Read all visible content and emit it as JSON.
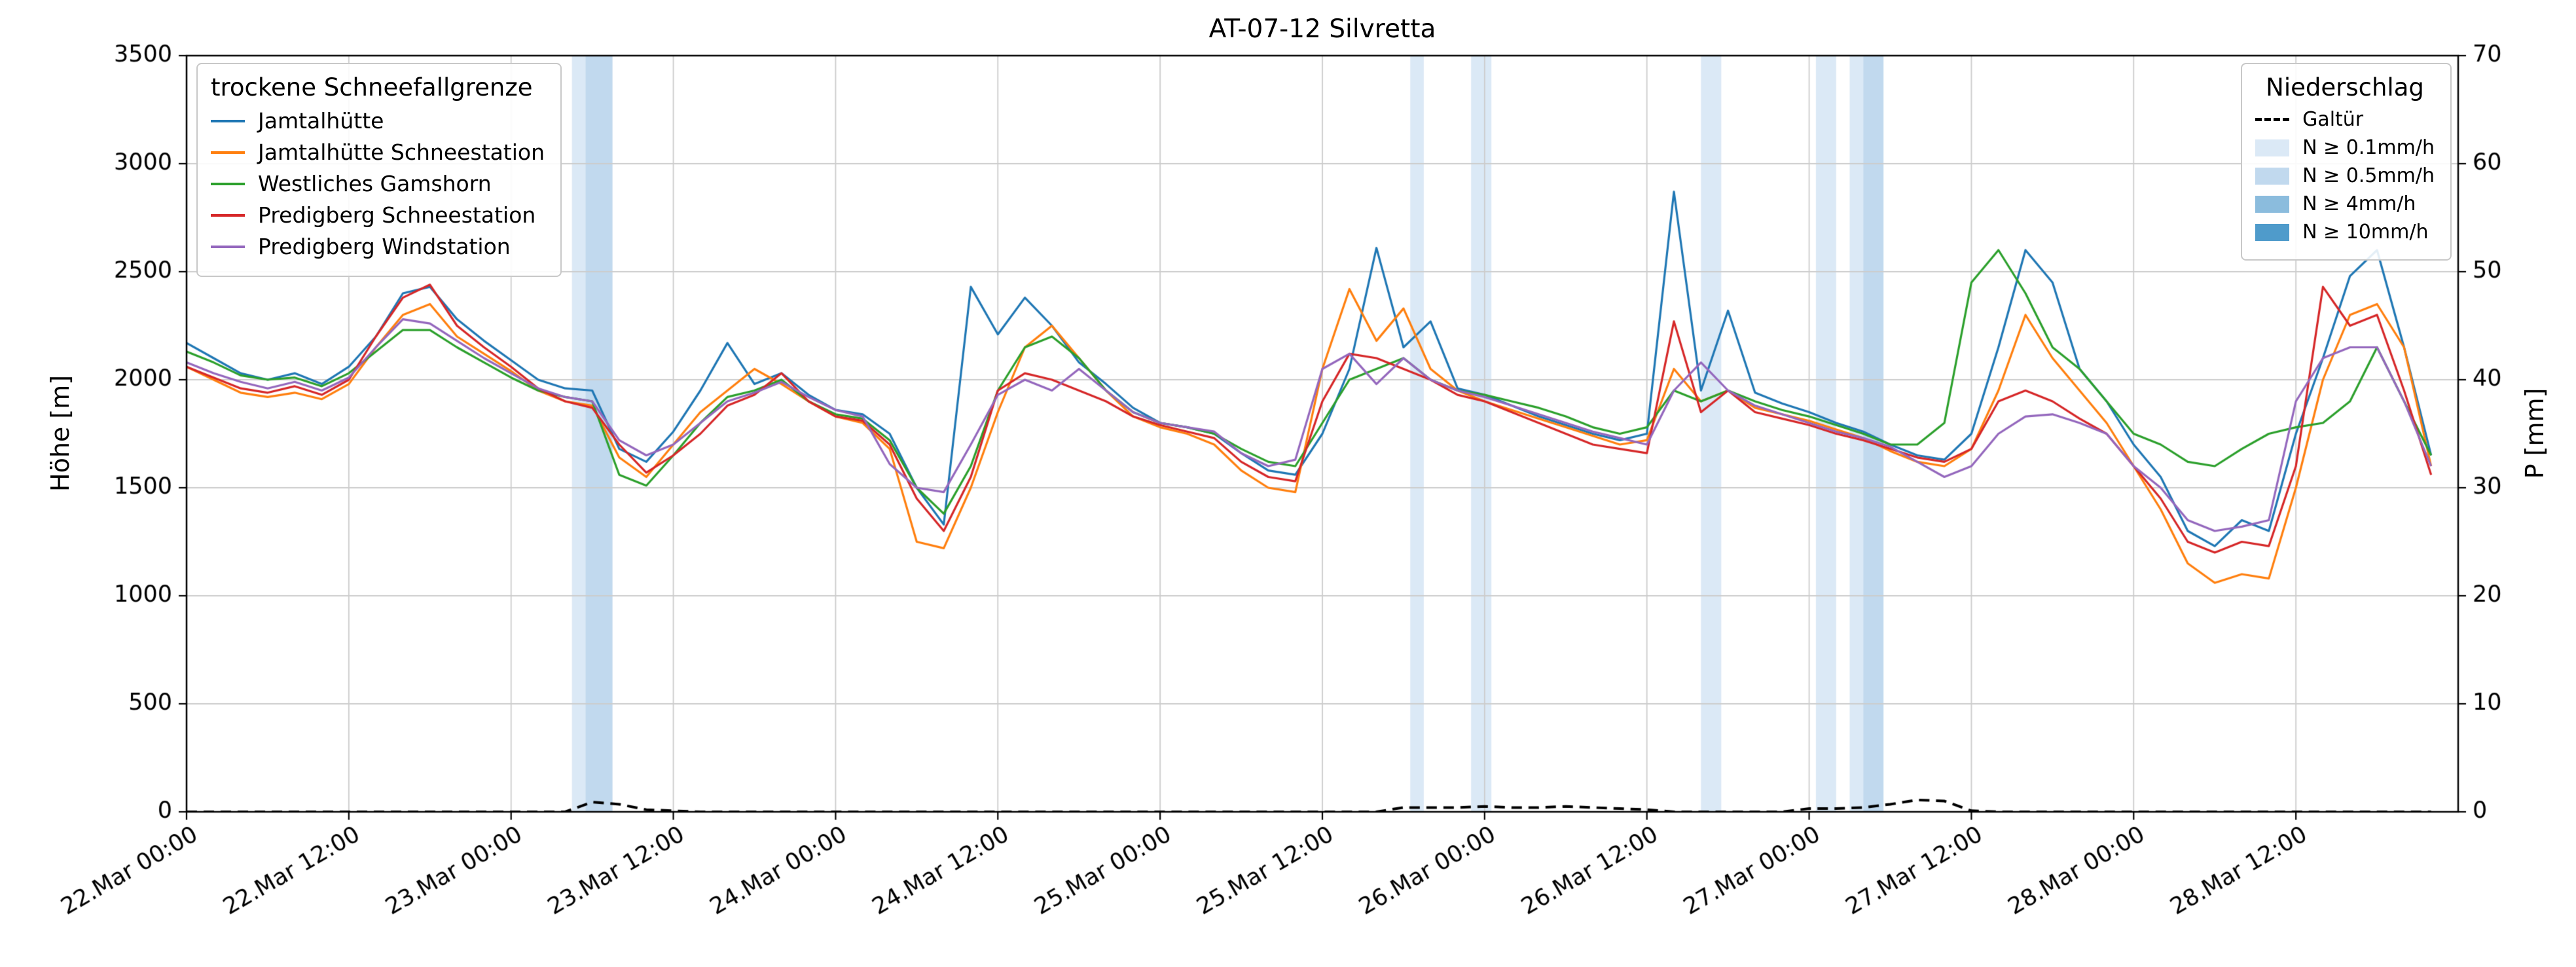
{
  "title": "AT-07-12 Silvretta",
  "left_legend": {
    "title": "trockene Schneefallgrenze",
    "items": [
      {
        "label": "Jamtalhütte",
        "color": "#1f77b4"
      },
      {
        "label": "Jamtalhütte Schneestation",
        "color": "#ff7f0e"
      },
      {
        "label": "Westliches Gamshorn",
        "color": "#2ca02c"
      },
      {
        "label": "Predigberg Schneestation",
        "color": "#d62728"
      },
      {
        "label": "Predigberg Windstation",
        "color": "#9467bd"
      }
    ]
  },
  "right_legend": {
    "title": "Niederschlag",
    "line_item": {
      "label": "Galtür",
      "color": "#000000",
      "dashed": true
    },
    "patch_items": [
      {
        "label": "N ≥ 0.1mm/h",
        "color": "#dbe9f6"
      },
      {
        "label": "N ≥ 0.5mm/h",
        "color": "#c1d9ee"
      },
      {
        "label": "N ≥ 4mm/h",
        "color": "#8bbcdd"
      },
      {
        "label": "N ≥ 10mm/h",
        "color": "#4f9bcb"
      }
    ]
  },
  "chart_data": {
    "type": "line",
    "title": "AT-07-12 Silvretta",
    "xlabel": "",
    "ylabel_left": "Höhe [m]",
    "ylabel_right": "P [mm]",
    "ylim_left": [
      0,
      3500
    ],
    "ylim_right": [
      0,
      70
    ],
    "x_range_hours": [
      0,
      168
    ],
    "grid": true,
    "x_epoch": "hours since 22.Mar 00:00",
    "y_ticks_left": [
      0,
      500,
      1000,
      1500,
      2000,
      2500,
      3000,
      3500
    ],
    "y_ticks_right": [
      0,
      10,
      20,
      30,
      40,
      50,
      60,
      70
    ],
    "x_ticks": [
      {
        "t": 0,
        "label": "22.Mar 00:00"
      },
      {
        "t": 12,
        "label": "22.Mar 12:00"
      },
      {
        "t": 24,
        "label": "23.Mar 00:00"
      },
      {
        "t": 36,
        "label": "23.Mar 12:00"
      },
      {
        "t": 48,
        "label": "24.Mar 00:00"
      },
      {
        "t": 60,
        "label": "24.Mar 12:00"
      },
      {
        "t": 72,
        "label": "25.Mar 00:00"
      },
      {
        "t": 84,
        "label": "25.Mar 12:00"
      },
      {
        "t": 96,
        "label": "26.Mar 00:00"
      },
      {
        "t": 108,
        "label": "26.Mar 12:00"
      },
      {
        "t": 120,
        "label": "27.Mar 00:00"
      },
      {
        "t": 132,
        "label": "27.Mar 12:00"
      },
      {
        "t": 144,
        "label": "28.Mar 00:00"
      },
      {
        "t": 156,
        "label": "28.Mar 12:00"
      }
    ],
    "x_hours": [
      0,
      2,
      4,
      6,
      8,
      10,
      12,
      14,
      16,
      18,
      20,
      22,
      24,
      26,
      28,
      30,
      32,
      34,
      36,
      38,
      40,
      42,
      44,
      46,
      48,
      50,
      52,
      54,
      56,
      58,
      60,
      62,
      64,
      66,
      68,
      70,
      72,
      74,
      76,
      78,
      80,
      82,
      84,
      86,
      88,
      90,
      92,
      94,
      96,
      98,
      100,
      102,
      104,
      106,
      108,
      110,
      112,
      114,
      116,
      118,
      120,
      122,
      124,
      126,
      128,
      130,
      132,
      134,
      136,
      138,
      140,
      142,
      144,
      146,
      148,
      150,
      152,
      154,
      156,
      158,
      160,
      162,
      164,
      166
    ],
    "series": [
      {
        "name": "Jamtalhütte",
        "color": "#1f77b4",
        "values": [
          2170,
          2100,
          2030,
          2000,
          2030,
          1980,
          2060,
          2200,
          2400,
          2430,
          2280,
          2180,
          2090,
          2000,
          1960,
          1950,
          1680,
          1620,
          1760,
          1950,
          2170,
          1980,
          2030,
          1930,
          1860,
          1840,
          1750,
          1500,
          1330,
          2430,
          2210,
          2380,
          2250,
          2080,
          1980,
          1870,
          1800,
          1780,
          1750,
          1660,
          1580,
          1560,
          1750,
          2050,
          2610,
          2150,
          2270,
          1960,
          1930,
          1880,
          1830,
          1790,
          1750,
          1720,
          1750,
          2870,
          1950,
          2320,
          1940,
          1890,
          1850,
          1800,
          1760,
          1700,
          1650,
          1630,
          1750,
          2150,
          2600,
          2450,
          2050,
          1900,
          1700,
          1550,
          1300,
          1230,
          1350,
          1300,
          1750,
          2100,
          2480,
          2600,
          2150,
          1650
        ]
      },
      {
        "name": "Jamtalhütte Schneestation",
        "color": "#ff7f0e",
        "values": [
          2060,
          2000,
          1940,
          1920,
          1940,
          1910,
          1980,
          2150,
          2300,
          2350,
          2200,
          2120,
          2040,
          1950,
          1900,
          1880,
          1640,
          1550,
          1700,
          1850,
          1950,
          2050,
          1980,
          1900,
          1830,
          1800,
          1680,
          1250,
          1220,
          1500,
          1850,
          2150,
          2250,
          2100,
          1950,
          1830,
          1780,
          1750,
          1700,
          1580,
          1500,
          1480,
          2050,
          2420,
          2180,
          2330,
          2050,
          1950,
          1900,
          1860,
          1820,
          1780,
          1740,
          1700,
          1720,
          2050,
          1900,
          1950,
          1870,
          1840,
          1810,
          1770,
          1730,
          1670,
          1620,
          1600,
          1680,
          1950,
          2300,
          2100,
          1950,
          1800,
          1600,
          1400,
          1150,
          1060,
          1100,
          1080,
          1500,
          2000,
          2300,
          2350,
          2150,
          1600
        ]
      },
      {
        "name": "Westliches Gamshorn",
        "color": "#2ca02c",
        "values": [
          2130,
          2080,
          2020,
          2000,
          2010,
          1970,
          2030,
          2130,
          2230,
          2230,
          2150,
          2080,
          2010,
          1950,
          1920,
          1900,
          1560,
          1510,
          1650,
          1800,
          1920,
          1950,
          2000,
          1900,
          1840,
          1820,
          1720,
          1500,
          1380,
          1600,
          1950,
          2150,
          2200,
          2100,
          1950,
          1850,
          1800,
          1780,
          1750,
          1680,
          1620,
          1600,
          1800,
          2000,
          2050,
          2100,
          2000,
          1950,
          1930,
          1900,
          1870,
          1830,
          1780,
          1750,
          1780,
          1950,
          1900,
          1950,
          1900,
          1860,
          1830,
          1790,
          1750,
          1700,
          1700,
          1800,
          2450,
          2600,
          2400,
          2150,
          2050,
          1900,
          1750,
          1700,
          1620,
          1600,
          1680,
          1750,
          1780,
          1800,
          1900,
          2150,
          1900,
          1650
        ]
      },
      {
        "name": "Predigberg Schneestation",
        "color": "#d62728",
        "values": [
          2060,
          2010,
          1960,
          1940,
          1970,
          1930,
          2000,
          2200,
          2380,
          2440,
          2250,
          2150,
          2060,
          1960,
          1900,
          1870,
          1700,
          1570,
          1650,
          1750,
          1880,
          1930,
          2030,
          1900,
          1830,
          1810,
          1700,
          1450,
          1300,
          1550,
          1950,
          2030,
          2000,
          1950,
          1900,
          1830,
          1790,
          1760,
          1730,
          1620,
          1550,
          1530,
          1900,
          2120,
          2100,
          2050,
          2000,
          1930,
          1900,
          1850,
          1800,
          1750,
          1700,
          1680,
          1660,
          2270,
          1850,
          1950,
          1850,
          1820,
          1790,
          1750,
          1720,
          1680,
          1640,
          1620,
          1680,
          1900,
          1950,
          1900,
          1820,
          1750,
          1600,
          1450,
          1250,
          1200,
          1250,
          1230,
          1600,
          2430,
          2250,
          2300,
          1950,
          1560
        ]
      },
      {
        "name": "Predigberg Windstation",
        "color": "#9467bd",
        "values": [
          2080,
          2030,
          1990,
          1960,
          1990,
          1950,
          2010,
          2150,
          2280,
          2260,
          2180,
          2100,
          2030,
          1960,
          1920,
          1900,
          1720,
          1650,
          1700,
          1800,
          1900,
          1940,
          1990,
          1920,
          1860,
          1830,
          1610,
          1500,
          1480,
          1700,
          1930,
          2000,
          1950,
          2050,
          1950,
          1850,
          1800,
          1780,
          1760,
          1660,
          1600,
          1630,
          2050,
          2120,
          1980,
          2100,
          2000,
          1950,
          1920,
          1880,
          1840,
          1800,
          1760,
          1730,
          1700,
          1950,
          2080,
          1950,
          1880,
          1840,
          1800,
          1760,
          1730,
          1690,
          1620,
          1550,
          1600,
          1750,
          1830,
          1840,
          1800,
          1750,
          1600,
          1500,
          1350,
          1300,
          1320,
          1350,
          1900,
          2100,
          2150,
          2150,
          1900,
          1600
        ]
      }
    ],
    "precip_line": {
      "name": "Galtür",
      "color": "#000000",
      "axis": "right",
      "dashed": true,
      "values": [
        0,
        0,
        0,
        0,
        0,
        0,
        0,
        0,
        0,
        0,
        0,
        0,
        0,
        0,
        0,
        0.9,
        0.7,
        0.2,
        0.1,
        0,
        0,
        0,
        0,
        0,
        0,
        0,
        0,
        0,
        0,
        0,
        0,
        0,
        0,
        0,
        0,
        0,
        0,
        0,
        0,
        0,
        0,
        0,
        0,
        0,
        0,
        0.4,
        0.4,
        0.4,
        0.5,
        0.4,
        0.4,
        0.5,
        0.4,
        0.3,
        0.2,
        0,
        0,
        0,
        0,
        0,
        0.3,
        0.3,
        0.4,
        0.7,
        1.1,
        1.0,
        0.1,
        0,
        0,
        0,
        0,
        0,
        0,
        0,
        0,
        0,
        0,
        0,
        0,
        0,
        0,
        0,
        0,
        0
      ]
    },
    "band_colors": {
      "0.1": "#dbe9f6",
      "0.5": "#c1d9ee",
      "4": "#8bbcdd",
      "10": "#4f9bcb"
    },
    "precip_bands": [
      {
        "start": 28.5,
        "end": 29.5,
        "level": "0.1"
      },
      {
        "start": 29.5,
        "end": 31.5,
        "level": "0.5"
      },
      {
        "start": 90.5,
        "end": 91.5,
        "level": "0.1"
      },
      {
        "start": 95.0,
        "end": 96.5,
        "level": "0.1"
      },
      {
        "start": 112.0,
        "end": 113.5,
        "level": "0.1"
      },
      {
        "start": 120.5,
        "end": 122.0,
        "level": "0.1"
      },
      {
        "start": 123.0,
        "end": 124.0,
        "level": "0.1"
      },
      {
        "start": 124.0,
        "end": 125.5,
        "level": "0.5"
      }
    ]
  }
}
